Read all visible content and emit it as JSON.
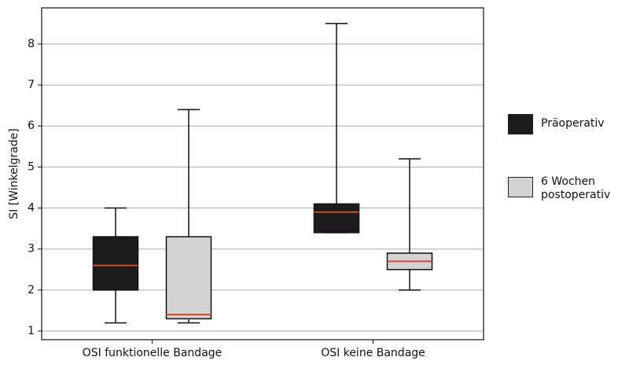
{
  "chart_data": {
    "type": "box",
    "y_label": "SI [Winkelgrade]",
    "categories": [
      "OSI funktionelle Bandage",
      "OSI keine Bandage"
    ],
    "series": [
      {
        "name": "Präoperativ",
        "color": "#1c1c1c",
        "boxes": [
          {
            "min": 1.2,
            "q1": 2.0,
            "median": 2.6,
            "q3": 3.3,
            "max": 4.0
          },
          {
            "min": 3.4,
            "q1": 3.4,
            "median": 3.9,
            "q3": 4.1,
            "max": 8.5
          }
        ]
      },
      {
        "name": "6 Wochen postoperativ",
        "color": "#d3d3d3",
        "boxes": [
          {
            "min": 1.2,
            "q1": 1.3,
            "median": 1.4,
            "q3": 3.3,
            "max": 6.4
          },
          {
            "min": 2.0,
            "q1": 2.5,
            "median": 2.7,
            "q3": 2.9,
            "max": 5.2
          }
        ]
      }
    ],
    "median_color": "#d04a2a",
    "ylim": [
      0.79,
      8.88
    ],
    "yticks": [
      1,
      2,
      3,
      4,
      5,
      6,
      7,
      8
    ],
    "grid": true
  }
}
